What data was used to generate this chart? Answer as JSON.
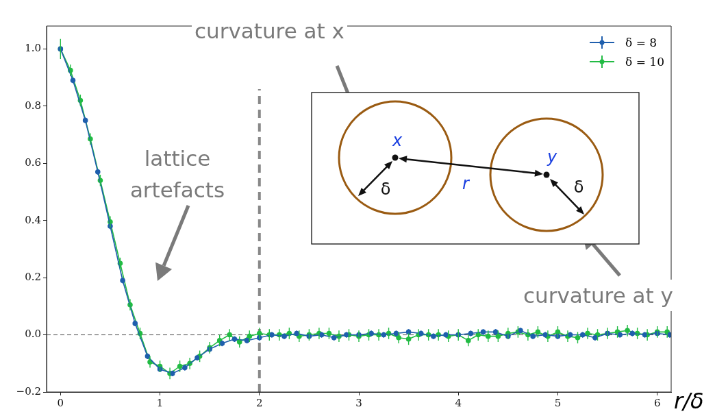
{
  "chart_data": {
    "type": "line",
    "xlabel": "r/δ",
    "xlim": [
      -0.14,
      6.14
    ],
    "xticks": [
      0,
      1,
      2,
      3,
      4,
      5,
      6
    ],
    "ylim": [
      -0.2,
      1.08
    ],
    "yticks": [
      {
        "value": -0.2,
        "label": "−0.2"
      },
      {
        "value": 0,
        "label": "0.0"
      },
      {
        "value": 0.2,
        "label": "0.2"
      },
      {
        "value": 0.4,
        "label": "0.4"
      },
      {
        "value": 0.6,
        "label": "0.6"
      },
      {
        "value": 0.8,
        "label": "0.8"
      },
      {
        "value": 1,
        "label": "1.0"
      }
    ],
    "grid": false,
    "legend": "top right",
    "marker": "circle",
    "line_style": "solid",
    "series": [
      {
        "name": "δ = 8",
        "color": "#1f5fad",
        "x": [
          0,
          0.125,
          0.25,
          0.375,
          0.5,
          0.625,
          0.75,
          0.875,
          1,
          1.125,
          1.25,
          1.375,
          1.5,
          1.625,
          1.75,
          1.875,
          2,
          2.125,
          2.25,
          2.375,
          2.5,
          2.625,
          2.75,
          2.875,
          3,
          3.125,
          3.25,
          3.375,
          3.5,
          3.625,
          3.75,
          3.875,
          4,
          4.125,
          4.25,
          4.375,
          4.5,
          4.625,
          4.75,
          4.875,
          5,
          5.125,
          5.25,
          5.375,
          5.5,
          5.625,
          5.75,
          5.875,
          6,
          6.125
        ],
        "values": [
          1.0,
          0.89,
          0.75,
          0.57,
          0.38,
          0.19,
          0.04,
          -0.075,
          -0.12,
          -0.135,
          -0.115,
          -0.08,
          -0.05,
          -0.03,
          -0.015,
          -0.02,
          -0.01,
          0.0,
          -0.005,
          0.005,
          -0.005,
          0.0,
          -0.01,
          0.0,
          0.0,
          0.005,
          0.0,
          0.005,
          0.01,
          0.005,
          -0.005,
          0.0,
          0.0,
          0.005,
          0.01,
          0.01,
          -0.005,
          0.015,
          -0.005,
          0.0,
          -0.005,
          0.0,
          0.0,
          -0.01,
          0.005,
          0.0,
          0.005,
          0.0,
          0.005,
          0.0
        ],
        "errors": [
          0.01,
          0.01,
          0.01,
          0.01,
          0.01,
          0.01,
          0.01,
          0.01,
          0.01,
          0.01,
          0.01,
          0.01,
          0.01,
          0.01,
          0.01,
          0.01,
          0.01,
          0.01,
          0.01,
          0.01,
          0.01,
          0.01,
          0.01,
          0.01,
          0.01,
          0.01,
          0.01,
          0.01,
          0.01,
          0.01,
          0.01,
          0.01,
          0.01,
          0.01,
          0.01,
          0.01,
          0.01,
          0.01,
          0.01,
          0.01,
          0.01,
          0.01,
          0.01,
          0.01,
          0.01,
          0.01,
          0.01,
          0.01,
          0.01,
          0.01
        ]
      },
      {
        "name": "δ = 10",
        "color": "#22bb44",
        "x": [
          0,
          0.1,
          0.2,
          0.3,
          0.4,
          0.5,
          0.6,
          0.7,
          0.8,
          0.9,
          1,
          1.1,
          1.2,
          1.3,
          1.4,
          1.5,
          1.6,
          1.7,
          1.8,
          1.9,
          2,
          2.1,
          2.2,
          2.3,
          2.4,
          2.5,
          2.6,
          2.7,
          2.8,
          2.9,
          3,
          3.1,
          3.2,
          3.3,
          3.4,
          3.5,
          3.6,
          3.7,
          3.8,
          3.9,
          4,
          4.1,
          4.2,
          4.3,
          4.4,
          4.5,
          4.6,
          4.7,
          4.8,
          4.9,
          5,
          5.1,
          5.2,
          5.3,
          5.4,
          5.5,
          5.6,
          5.7,
          5.8,
          5.9,
          6,
          6.1
        ],
        "values": [
          1.0,
          0.925,
          0.82,
          0.685,
          0.54,
          0.395,
          0.25,
          0.105,
          0.005,
          -0.095,
          -0.11,
          -0.135,
          -0.11,
          -0.1,
          -0.075,
          -0.045,
          -0.02,
          0.0,
          -0.025,
          -0.005,
          0.005,
          0.0,
          0.0,
          0.005,
          -0.005,
          0.0,
          0.005,
          0.005,
          -0.005,
          0.0,
          -0.005,
          0.0,
          0.0,
          0.005,
          -0.01,
          -0.015,
          0.0,
          0.0,
          0.0,
          -0.005,
          0.0,
          -0.02,
          0.0,
          -0.005,
          -0.005,
          0.005,
          0.01,
          0.0,
          0.01,
          -0.005,
          0.01,
          -0.005,
          -0.01,
          0.005,
          0.0,
          0.005,
          0.01,
          0.015,
          0.005,
          0.0,
          0.01,
          0.01
        ],
        "errors": [
          0.035,
          0.02,
          0.02,
          0.02,
          0.02,
          0.02,
          0.02,
          0.02,
          0.02,
          0.02,
          0.02,
          0.02,
          0.02,
          0.02,
          0.02,
          0.02,
          0.02,
          0.02,
          0.02,
          0.02,
          0.02,
          0.02,
          0.02,
          0.02,
          0.02,
          0.02,
          0.02,
          0.02,
          0.02,
          0.02,
          0.02,
          0.02,
          0.02,
          0.02,
          0.02,
          0.02,
          0.02,
          0.02,
          0.02,
          0.02,
          0.02,
          0.02,
          0.02,
          0.02,
          0.02,
          0.02,
          0.02,
          0.02,
          0.02,
          0.02,
          0.02,
          0.02,
          0.02,
          0.02,
          0.02,
          0.02,
          0.02,
          0.02,
          0.02,
          0.02,
          0.02,
          0.02
        ]
      }
    ],
    "ref_lines": [
      {
        "axis": "y",
        "value": 0,
        "color": "#555555",
        "line_style": "dashed"
      },
      {
        "axis": "x",
        "value": 2,
        "color": "#888888",
        "line_style": "dashed"
      }
    ],
    "annotations": [
      "lattice artefacts",
      "curvature at x",
      "curvature at y",
      "x",
      "y",
      "r",
      "δ",
      "δ"
    ]
  }
}
